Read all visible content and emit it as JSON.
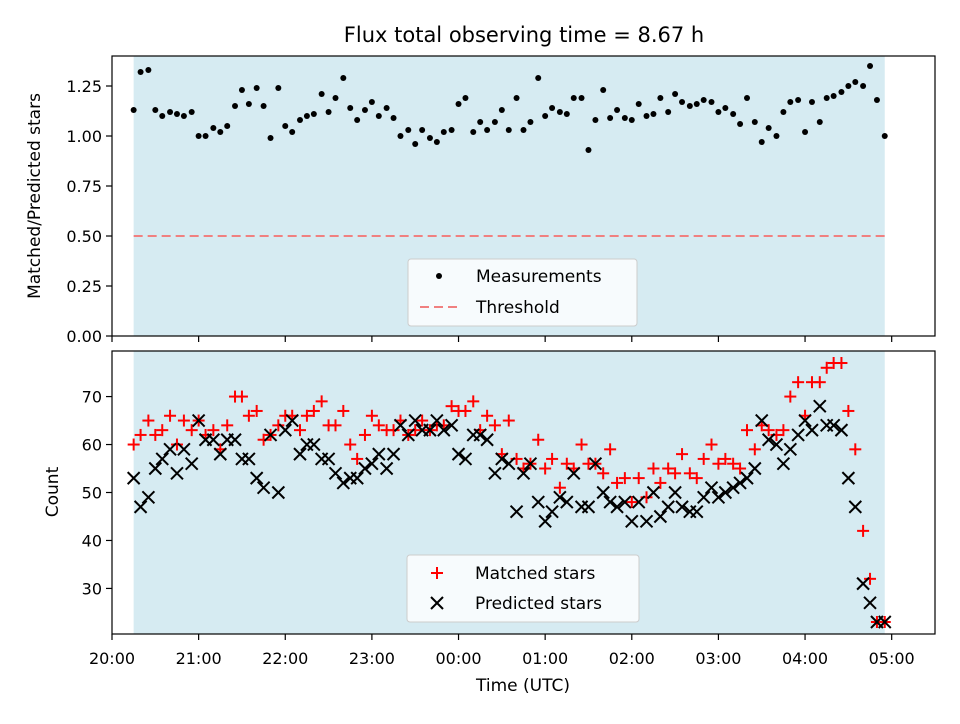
{
  "chart_data": [
    {
      "type": "scatter",
      "title": "Flux total observing time = 8.67 h",
      "ylabel": "Matched/Predicted stars",
      "xlabel": "",
      "ylim": [
        0,
        1.4
      ],
      "xlim_hours": [
        20.0,
        29.5
      ],
      "yticks": [
        "0.00",
        "0.25",
        "0.50",
        "0.75",
        "1.00",
        "1.25"
      ],
      "ytick_values": [
        0,
        0.25,
        0.5,
        0.75,
        1.0,
        1.25
      ],
      "shaded_span_hours": [
        20.25,
        28.92
      ],
      "shade_color": "#add8e6",
      "threshold": 0.5,
      "threshold_color": "#f08080",
      "legend": {
        "location": "lower center",
        "entries": [
          "Measurements",
          "Threshold"
        ]
      },
      "series": [
        {
          "name": "Measurements",
          "marker": "dot",
          "color": "#000000",
          "x": [
            20.25,
            20.33,
            20.42,
            20.5,
            20.58,
            20.67,
            20.75,
            20.83,
            20.92,
            21.0,
            21.08,
            21.17,
            21.25,
            21.33,
            21.42,
            21.5,
            21.58,
            21.67,
            21.75,
            21.83,
            21.92,
            22.0,
            22.08,
            22.17,
            22.25,
            22.33,
            22.42,
            22.5,
            22.58,
            22.67,
            22.75,
            22.83,
            22.92,
            23.0,
            23.08,
            23.17,
            23.25,
            23.33,
            23.42,
            23.5,
            23.58,
            23.67,
            23.75,
            23.83,
            23.92,
            24.0,
            24.08,
            24.17,
            24.25,
            24.33,
            24.42,
            24.5,
            24.58,
            24.67,
            24.75,
            24.83,
            24.92,
            25.0,
            25.08,
            25.17,
            25.25,
            25.33,
            25.42,
            25.5,
            25.58,
            25.67,
            25.75,
            25.83,
            25.92,
            26.0,
            26.08,
            26.17,
            26.25,
            26.33,
            26.42,
            26.5,
            26.58,
            26.67,
            26.75,
            26.83,
            26.92,
            27.0,
            27.08,
            27.17,
            27.25,
            27.33,
            27.42,
            27.5,
            27.58,
            27.67,
            27.75,
            27.83,
            27.92,
            28.0,
            28.08,
            28.17,
            28.25,
            28.33,
            28.42,
            28.5,
            28.58,
            28.67,
            28.75,
            28.83,
            28.92
          ],
          "y": [
            1.13,
            1.32,
            1.33,
            1.13,
            1.1,
            1.12,
            1.11,
            1.1,
            1.12,
            1.0,
            1.0,
            1.04,
            1.02,
            1.05,
            1.15,
            1.23,
            1.16,
            1.24,
            1.15,
            0.99,
            1.24,
            1.05,
            1.02,
            1.08,
            1.1,
            1.11,
            1.21,
            1.12,
            1.19,
            1.29,
            1.14,
            1.08,
            1.13,
            1.17,
            1.1,
            1.14,
            1.09,
            1.0,
            1.03,
            0.96,
            1.03,
            0.99,
            0.97,
            1.02,
            1.03,
            1.16,
            1.19,
            1.02,
            1.07,
            1.03,
            1.07,
            1.13,
            1.03,
            1.19,
            1.03,
            1.07,
            1.29,
            1.1,
            1.14,
            1.12,
            1.11,
            1.19,
            1.19,
            0.93,
            1.08,
            1.23,
            1.09,
            1.13,
            1.09,
            1.08,
            1.16,
            1.1,
            1.11,
            1.19,
            1.12,
            1.21,
            1.17,
            1.15,
            1.16,
            1.18,
            1.17,
            1.12,
            1.14,
            1.11,
            1.06,
            1.19,
            1.07,
            0.97,
            1.04,
            1.0,
            1.12,
            1.17,
            1.18,
            1.02,
            1.17,
            1.07,
            1.19,
            1.2,
            1.22,
            1.25,
            1.27,
            1.25,
            1.35,
            1.18,
            1.0
          ]
        }
      ]
    },
    {
      "type": "scatter",
      "title": "",
      "ylabel": "Count",
      "xlabel": "Time (UTC)",
      "ylim": [
        20.5,
        79.5
      ],
      "xlim_hours": [
        20.0,
        29.5
      ],
      "yticks": [
        "30",
        "40",
        "50",
        "60",
        "70"
      ],
      "ytick_values": [
        30,
        40,
        50,
        60,
        70
      ],
      "xticks": [
        "20:00",
        "21:00",
        "22:00",
        "23:00",
        "00:00",
        "01:00",
        "02:00",
        "03:00",
        "04:00",
        "05:00"
      ],
      "xtick_values": [
        20,
        21,
        22,
        23,
        24,
        25,
        26,
        27,
        28,
        29
      ],
      "shaded_span_hours": [
        20.25,
        28.92
      ],
      "shade_color": "#add8e6",
      "legend": {
        "location": "lower center",
        "entries": [
          "Matched stars",
          "Predicted stars"
        ]
      },
      "series": [
        {
          "name": "Matched stars",
          "marker": "plus",
          "color": "#ff0000",
          "x": [
            20.25,
            20.33,
            20.42,
            20.5,
            20.58,
            20.67,
            20.75,
            20.83,
            20.92,
            21.0,
            21.08,
            21.17,
            21.25,
            21.33,
            21.42,
            21.5,
            21.58,
            21.67,
            21.75,
            21.83,
            21.92,
            22.0,
            22.08,
            22.17,
            22.25,
            22.33,
            22.42,
            22.5,
            22.58,
            22.67,
            22.75,
            22.83,
            22.92,
            23.0,
            23.08,
            23.17,
            23.25,
            23.33,
            23.42,
            23.5,
            23.58,
            23.67,
            23.75,
            23.83,
            23.92,
            24.0,
            24.08,
            24.17,
            24.25,
            24.33,
            24.42,
            24.5,
            24.58,
            24.67,
            24.75,
            24.83,
            24.92,
            25.0,
            25.08,
            25.17,
            25.25,
            25.33,
            25.42,
            25.5,
            25.58,
            25.67,
            25.75,
            25.83,
            25.92,
            26.0,
            26.08,
            26.17,
            26.25,
            26.33,
            26.42,
            26.5,
            26.58,
            26.67,
            26.75,
            26.83,
            26.92,
            27.0,
            27.08,
            27.17,
            27.25,
            27.33,
            27.42,
            27.5,
            27.58,
            27.67,
            27.75,
            27.83,
            27.92,
            28.0,
            28.08,
            28.17,
            28.25,
            28.33,
            28.42,
            28.5,
            28.58,
            28.67,
            28.75,
            28.83,
            28.92
          ],
          "y": [
            60,
            62,
            65,
            62,
            63,
            66,
            60,
            65,
            63,
            65,
            62,
            63,
            59,
            64,
            70,
            70,
            66,
            67,
            61,
            62,
            64,
            66,
            66,
            63,
            66,
            67,
            69,
            64,
            64,
            67,
            60,
            57,
            62,
            66,
            64,
            63,
            63,
            65,
            62,
            63,
            65,
            63,
            64,
            64,
            68,
            67,
            67,
            69,
            63,
            66,
            64,
            58,
            65,
            57,
            55,
            56,
            61,
            55,
            57,
            51,
            56,
            55,
            60,
            56,
            56,
            54,
            59,
            52,
            53,
            48,
            53,
            49,
            55,
            52,
            55,
            54,
            58,
            54,
            53,
            57,
            60,
            56,
            57,
            56,
            55,
            63,
            59,
            64,
            63,
            62,
            63,
            70,
            73,
            66,
            73,
            73,
            76,
            77,
            77,
            67,
            59,
            42,
            32,
            23,
            23
          ]
        },
        {
          "name": "Predicted stars",
          "marker": "x",
          "color": "#000000",
          "x": [
            20.25,
            20.33,
            20.42,
            20.5,
            20.58,
            20.67,
            20.75,
            20.83,
            20.92,
            21.0,
            21.08,
            21.17,
            21.25,
            21.33,
            21.42,
            21.5,
            21.58,
            21.67,
            21.75,
            21.83,
            21.92,
            22.0,
            22.08,
            22.17,
            22.25,
            22.33,
            22.42,
            22.5,
            22.58,
            22.67,
            22.75,
            22.83,
            22.92,
            23.0,
            23.08,
            23.17,
            23.25,
            23.33,
            23.42,
            23.5,
            23.58,
            23.67,
            23.75,
            23.83,
            23.92,
            24.0,
            24.08,
            24.17,
            24.25,
            24.33,
            24.42,
            24.5,
            24.58,
            24.67,
            24.75,
            24.83,
            24.92,
            25.0,
            25.08,
            25.17,
            25.25,
            25.33,
            25.42,
            25.5,
            25.58,
            25.67,
            25.75,
            25.83,
            25.92,
            26.0,
            26.08,
            26.17,
            26.25,
            26.33,
            26.42,
            26.5,
            26.58,
            26.67,
            26.75,
            26.83,
            26.92,
            27.0,
            27.08,
            27.17,
            27.25,
            27.33,
            27.42,
            27.5,
            27.58,
            27.67,
            27.75,
            27.83,
            27.92,
            28.0,
            28.08,
            28.17,
            28.25,
            28.33,
            28.42,
            28.5,
            28.58,
            28.67,
            28.75,
            28.83,
            28.92
          ],
          "y": [
            53,
            47,
            49,
            55,
            57,
            59,
            54,
            59,
            56,
            65,
            61,
            61,
            58,
            61,
            61,
            57,
            57,
            53,
            51,
            62,
            50,
            63,
            65,
            58,
            60,
            60,
            57,
            57,
            54,
            52,
            53,
            53,
            55,
            56,
            58,
            55,
            58,
            64,
            62,
            65,
            63,
            63,
            65,
            63,
            64,
            58,
            57,
            62,
            62,
            61,
            54,
            57,
            56,
            46,
            54,
            56,
            48,
            44,
            46,
            49,
            48,
            54,
            47,
            47,
            56,
            50,
            48,
            47,
            48,
            44,
            48,
            44,
            50,
            45,
            47,
            50,
            47,
            46,
            46,
            49,
            51,
            49,
            50,
            51,
            52,
            53,
            55,
            65,
            61,
            60,
            56,
            59,
            62,
            65,
            63,
            68,
            64,
            64,
            63,
            53,
            47,
            31,
            27,
            23,
            23
          ]
        }
      ]
    }
  ]
}
